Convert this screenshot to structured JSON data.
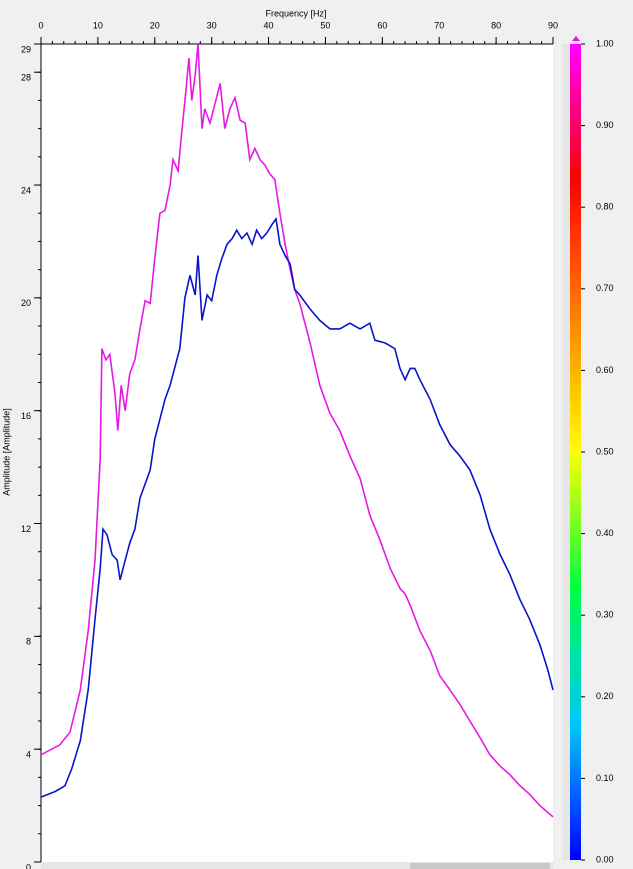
{
  "chart_data": {
    "type": "line",
    "x_label": "Frequency [Hz]",
    "y_label": "Amplitude [Amplitude]",
    "xlim": [
      0,
      90
    ],
    "xticks": [
      0,
      10,
      20,
      30,
      40,
      50,
      60,
      70,
      80,
      90
    ],
    "ylim": [
      0,
      29
    ],
    "yticks": [
      0,
      4,
      8,
      12,
      16,
      20,
      24,
      28,
      29
    ],
    "series": [
      {
        "color": "#e619e6",
        "x": [
          0,
          3.3,
          5.1,
          6.9,
          8.3,
          9.5,
          10.4,
          10.7,
          11.4,
          12.1,
          13.0,
          13.5,
          14.1,
          14.8,
          15.6,
          16.5,
          17.4,
          18.3,
          19.2,
          20.0,
          20.9,
          21.8,
          22.7,
          23.2,
          24.1,
          24.8,
          25.5,
          26.0,
          26.5,
          27.1,
          27.6,
          28.3,
          28.8,
          29.7,
          30.6,
          31.5,
          32.3,
          33.2,
          34.1,
          35.0,
          35.9,
          36.7,
          37.6,
          38.5,
          39.4,
          40.2,
          41.1,
          42.0,
          42.9,
          43.8,
          44.6,
          45.5,
          47.3,
          49.0,
          50.8,
          52.5,
          54.3,
          56.1,
          57.8,
          59.6,
          61.4,
          63.1,
          64.0,
          64.9,
          66.6,
          68.4,
          70.1,
          71.9,
          73.6,
          75.4,
          77.2,
          78.9,
          80.7,
          82.4,
          84.2,
          85.9,
          87.7,
          90
        ],
        "values": [
          3.8,
          4.15,
          4.6,
          6.1,
          8.2,
          10.7,
          14.3,
          18.2,
          17.8,
          18.0,
          16.6,
          15.3,
          16.9,
          16.0,
          17.3,
          17.8,
          18.9,
          19.9,
          19.8,
          21.4,
          23.0,
          23.1,
          24.0,
          24.9,
          24.5,
          26.0,
          27.4,
          28.5,
          27.0,
          27.9,
          29.0,
          26.0,
          26.7,
          26.2,
          26.9,
          27.6,
          26.0,
          26.7,
          27.1,
          26.3,
          26.2,
          24.9,
          25.3,
          24.9,
          24.7,
          24.4,
          24.2,
          23.0,
          21.9,
          21.0,
          20.3,
          19.8,
          18.4,
          16.9,
          15.9,
          15.3,
          14.4,
          13.6,
          12.3,
          11.4,
          10.4,
          9.7,
          9.5,
          9.1,
          8.2,
          7.5,
          6.6,
          6.1,
          5.6,
          5.0,
          4.4,
          3.8,
          3.4,
          3.1,
          2.7,
          2.4,
          2.0,
          1.6
        ]
      },
      {
        "color": "#0a14c8",
        "x": [
          0,
          2.5,
          4.2,
          5.4,
          6.9,
          8.3,
          9.5,
          10.4,
          10.9,
          11.6,
          12.5,
          13.4,
          13.9,
          14.8,
          15.6,
          16.5,
          17.4,
          18.3,
          19.2,
          20.0,
          20.9,
          21.8,
          22.7,
          23.6,
          24.4,
          25.3,
          26.2,
          27.1,
          27.6,
          28.3,
          29.2,
          30.0,
          30.9,
          31.8,
          32.7,
          33.6,
          34.4,
          35.3,
          36.2,
          37.1,
          37.9,
          38.8,
          39.7,
          40.6,
          41.3,
          42.0,
          42.9,
          43.8,
          44.6,
          45.5,
          47.3,
          49.0,
          50.8,
          52.5,
          54.3,
          56.1,
          57.8,
          58.7,
          60.5,
          62.2,
          63.1,
          64.0,
          64.9,
          65.7,
          66.6,
          68.4,
          70.1,
          71.9,
          73.6,
          75.4,
          77.2,
          78.9,
          80.7,
          82.4,
          84.2,
          85.9,
          87.7,
          89.1,
          90
        ],
        "values": [
          2.3,
          2.5,
          2.7,
          3.3,
          4.3,
          6.1,
          8.6,
          10.4,
          11.8,
          11.6,
          10.9,
          10.7,
          10.0,
          10.7,
          11.3,
          11.8,
          12.9,
          13.4,
          13.9,
          15.0,
          15.7,
          16.4,
          16.9,
          17.6,
          18.2,
          20.0,
          20.8,
          20.1,
          21.5,
          19.2,
          20.1,
          19.9,
          20.8,
          21.4,
          21.9,
          22.1,
          22.4,
          22.1,
          22.3,
          21.9,
          22.4,
          22.1,
          22.3,
          22.6,
          22.8,
          21.9,
          21.5,
          21.2,
          20.3,
          20.1,
          19.6,
          19.2,
          18.9,
          18.9,
          19.1,
          18.9,
          19.1,
          18.5,
          18.4,
          18.2,
          17.5,
          17.1,
          17.5,
          17.5,
          17.1,
          16.4,
          15.5,
          14.8,
          14.4,
          13.9,
          13.0,
          11.8,
          10.9,
          10.2,
          9.3,
          8.6,
          7.7,
          6.8,
          6.1
        ]
      }
    ],
    "colorbar": {
      "colors": [
        "#0000ff",
        "#00c8ff",
        "#00ff40",
        "#ffff00",
        "#ff8000",
        "#ff0000",
        "#ff00ff"
      ],
      "lim": [
        0,
        1
      ],
      "ticks": [
        {
          "value": 0,
          "label": "0.00"
        },
        {
          "value": 0.1,
          "label": "0.10"
        },
        {
          "value": 0.2,
          "label": "0.20"
        },
        {
          "value": 0.3,
          "label": "0.30"
        },
        {
          "value": 0.4,
          "label": "0.40"
        },
        {
          "value": 0.5,
          "label": "0.50"
        },
        {
          "value": 0.6,
          "label": "0.60"
        },
        {
          "value": 0.7,
          "label": "0.70"
        },
        {
          "value": 0.8,
          "label": "0.80"
        },
        {
          "value": 0.9,
          "label": "0.90"
        },
        {
          "value": 1,
          "label": "1.00"
        }
      ]
    }
  }
}
